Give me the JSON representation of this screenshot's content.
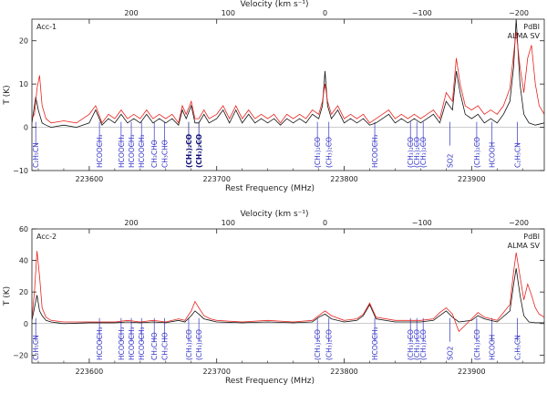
{
  "colors": {
    "pdbi": "#111111",
    "alma": "#e8241f",
    "line_id": "#3434c8",
    "line_id_bold": "#101078"
  },
  "chart_data": [
    {
      "type": "line",
      "panel_label": "Acc-1",
      "top_axis_label": "Velocity (km s⁻¹)",
      "xlabel": "Rest Frequency (MHz)",
      "ylabel": "T (K)",
      "xlim": [
        223555,
        223957
      ],
      "ylim": [
        -10,
        25
      ],
      "velocity_ticks": [
        200,
        100,
        0,
        -100,
        -200
      ],
      "velocity_tick_freqs": [
        223633,
        223709,
        223785,
        223861,
        223937
      ],
      "x_ticks": [
        223600,
        223700,
        223800,
        223900
      ],
      "y_ticks": [
        -10,
        0,
        10,
        20
      ],
      "legend": [
        "PdBI",
        "ALMA SV"
      ],
      "series": [
        {
          "name": "PdBI",
          "color": "#111111",
          "x": [
            223555,
            223558,
            223560,
            223563,
            223566,
            223570,
            223580,
            223590,
            223600,
            223605,
            223610,
            223615,
            223620,
            223625,
            223630,
            223635,
            223640,
            223645,
            223650,
            223655,
            223660,
            223665,
            223670,
            223673,
            223676,
            223680,
            223683,
            223686,
            223690,
            223694,
            223700,
            223705,
            223710,
            223715,
            223720,
            223725,
            223730,
            223735,
            223740,
            223745,
            223750,
            223755,
            223760,
            223765,
            223770,
            223775,
            223780,
            223783,
            223785,
            223787,
            223790,
            223795,
            223800,
            223805,
            223810,
            223815,
            223820,
            223825,
            223830,
            223835,
            223840,
            223845,
            223850,
            223855,
            223860,
            223865,
            223870,
            223875,
            223880,
            223885,
            223888,
            223891,
            223895,
            223900,
            223905,
            223910,
            223915,
            223920,
            223925,
            223930,
            223933,
            223935,
            223938,
            223941,
            223945,
            223950,
            223957
          ],
          "y": [
            1,
            7,
            4,
            1,
            0.5,
            0,
            0.5,
            0,
            1,
            4,
            0.5,
            2,
            1,
            3,
            1,
            2,
            1,
            3,
            1,
            2,
            1,
            2,
            0.5,
            4,
            2,
            5,
            1,
            1,
            3,
            1,
            2,
            4,
            1,
            4,
            1,
            3,
            1,
            2,
            1,
            2,
            0.5,
            2,
            1,
            2,
            1,
            3,
            2,
            5,
            13,
            5,
            2,
            4,
            1,
            2,
            1,
            2,
            0.5,
            1,
            2,
            3,
            1,
            2,
            1,
            2,
            1,
            2,
            3,
            1,
            6,
            4,
            13,
            8,
            3,
            2,
            3,
            1,
            2,
            1,
            3,
            6,
            14,
            25,
            10,
            3,
            1,
            0.5,
            1
          ]
        },
        {
          "name": "ALMA SV",
          "color": "#e8241f",
          "x": [
            223555,
            223557,
            223559,
            223561,
            223563,
            223566,
            223570,
            223580,
            223590,
            223600,
            223605,
            223610,
            223615,
            223620,
            223625,
            223630,
            223635,
            223640,
            223645,
            223650,
            223655,
            223660,
            223665,
            223670,
            223673,
            223676,
            223680,
            223683,
            223686,
            223690,
            223694,
            223700,
            223705,
            223710,
            223715,
            223720,
            223725,
            223730,
            223735,
            223740,
            223745,
            223750,
            223755,
            223760,
            223765,
            223770,
            223775,
            223780,
            223783,
            223785,
            223787,
            223790,
            223795,
            223800,
            223805,
            223810,
            223815,
            223820,
            223825,
            223830,
            223835,
            223840,
            223845,
            223850,
            223855,
            223860,
            223865,
            223870,
            223875,
            223880,
            223885,
            223888,
            223891,
            223895,
            223900,
            223905,
            223910,
            223915,
            223920,
            223925,
            223930,
            223933,
            223935,
            223938,
            223941,
            223944,
            223947,
            223950,
            223953,
            223957
          ],
          "y": [
            2,
            3,
            9,
            12,
            5,
            2,
            1,
            1.5,
            1,
            3,
            5,
            1,
            3,
            2,
            4,
            2,
            3,
            2,
            4,
            2,
            3,
            2,
            3,
            1,
            5,
            3,
            6,
            2,
            2,
            4,
            2,
            3,
            5,
            2,
            5,
            2,
            4,
            2,
            3,
            2,
            3,
            1,
            3,
            2,
            3,
            2,
            4,
            3,
            6,
            10,
            6,
            3,
            5,
            2,
            3,
            2,
            3,
            1,
            2,
            3,
            4,
            2,
            3,
            2,
            3,
            2,
            3,
            4,
            2,
            8,
            6,
            16,
            10,
            5,
            4,
            5,
            3,
            4,
            3,
            5,
            9,
            17,
            22,
            14,
            8,
            16,
            19,
            10,
            5,
            3
          ]
        }
      ],
      "line_ids": [
        {
          "label": "C₂H₅CN",
          "freq": 223558,
          "bold": false
        },
        {
          "label": "HCOOCH₃",
          "freq": 223608,
          "bold": false
        },
        {
          "label": "HCOOCH₃",
          "freq": 223625,
          "bold": false
        },
        {
          "label": "HCOOCH₃",
          "freq": 223633,
          "bold": false
        },
        {
          "label": "HCOOCH₃",
          "freq": 223641,
          "bold": false
        },
        {
          "label": "CH₃CHO",
          "freq": 223651,
          "bold": false
        },
        {
          "label": "CH₃CHO",
          "freq": 223659,
          "bold": false
        },
        {
          "label": "(CH₃)₂CO",
          "freq": 223678,
          "bold": true
        },
        {
          "label": "(CH₃)₂CO",
          "freq": 223686,
          "bold": true
        },
        {
          "label": "(CH₃)₂CO",
          "freq": 223779,
          "bold": false
        },
        {
          "label": "(CH₃)₂CO",
          "freq": 223788,
          "bold": false
        },
        {
          "label": "HCOOCH₃",
          "freq": 223824,
          "bold": false
        },
        {
          "label": "(CH₃)₂CO",
          "freq": 223852,
          "bold": false
        },
        {
          "label": "(CH₃)₂CO",
          "freq": 223857,
          "bold": false
        },
        {
          "label": "(CH₃)₂CO",
          "freq": 223862,
          "bold": false
        },
        {
          "label": "SO2",
          "freq": 223883,
          "bold": false
        },
        {
          "label": "(CH₃)₂CO",
          "freq": 223904,
          "bold": false
        },
        {
          "label": "HCOOH",
          "freq": 223916,
          "bold": false
        },
        {
          "label": "C₂H₅CN",
          "freq": 223936,
          "bold": false
        }
      ]
    },
    {
      "type": "line",
      "panel_label": "Acc-2",
      "top_axis_label": "Velocity (km s⁻¹)",
      "xlabel": "Rest Frequency (MHz)",
      "ylabel": "T (K)",
      "xlim": [
        223555,
        223957
      ],
      "ylim": [
        -25,
        60
      ],
      "velocity_ticks": [
        200,
        100,
        0,
        -100,
        -200
      ],
      "velocity_tick_freqs": [
        223633,
        223709,
        223785,
        223861,
        223937
      ],
      "x_ticks": [
        223600,
        223700,
        223800,
        223900
      ],
      "y_ticks": [
        -20,
        0,
        20,
        40,
        60
      ],
      "legend": [
        "PdBI",
        "ALMA SV"
      ],
      "series": [
        {
          "name": "PdBI",
          "color": "#111111",
          "x": [
            223555,
            223557,
            223559,
            223561,
            223563,
            223566,
            223570,
            223580,
            223600,
            223620,
            223630,
            223640,
            223650,
            223660,
            223670,
            223675,
            223680,
            223683,
            223686,
            223690,
            223695,
            223700,
            223720,
            223740,
            223760,
            223775,
            223780,
            223785,
            223790,
            223800,
            223810,
            223815,
            223820,
            223825,
            223840,
            223860,
            223870,
            223875,
            223880,
            223885,
            223890,
            223900,
            223905,
            223910,
            223920,
            223930,
            223933,
            223935,
            223938,
            223941,
            223945,
            223950,
            223957
          ],
          "y": [
            2,
            10,
            18,
            8,
            5,
            2,
            1,
            0,
            0.5,
            0.5,
            1,
            0.5,
            1,
            0.5,
            2,
            1,
            5,
            8,
            6,
            3,
            2,
            1,
            0.5,
            1,
            0.5,
            1,
            4,
            6,
            3,
            1,
            2,
            5,
            12,
            3,
            1,
            1,
            2,
            5,
            8,
            4,
            1,
            2,
            5,
            3,
            1,
            8,
            25,
            35,
            18,
            5,
            1,
            0.5,
            0.5
          ]
        },
        {
          "name": "ALMA SV",
          "color": "#e8241f",
          "x": [
            223555,
            223557,
            223559,
            223561,
            223563,
            223566,
            223570,
            223580,
            223600,
            223620,
            223630,
            223640,
            223650,
            223660,
            223670,
            223675,
            223680,
            223683,
            223686,
            223690,
            223695,
            223700,
            223720,
            223740,
            223760,
            223775,
            223780,
            223785,
            223790,
            223800,
            223810,
            223815,
            223820,
            223825,
            223840,
            223860,
            223870,
            223875,
            223880,
            223885,
            223890,
            223900,
            223905,
            223910,
            223920,
            223930,
            223933,
            223935,
            223938,
            223941,
            223944,
            223947,
            223950,
            223953,
            223957
          ],
          "y": [
            3,
            20,
            46,
            30,
            10,
            4,
            2,
            1,
            1,
            1,
            2,
            1,
            2,
            1,
            3,
            2,
            8,
            14,
            10,
            5,
            3,
            2,
            1,
            2,
            1,
            2,
            5,
            8,
            5,
            2,
            3,
            6,
            13,
            4,
            2,
            2,
            3,
            7,
            10,
            6,
            -5,
            3,
            7,
            4,
            2,
            12,
            33,
            45,
            30,
            15,
            25,
            18,
            10,
            6,
            4
          ]
        }
      ],
      "line_ids": [
        {
          "label": "C₂H₅CN",
          "freq": 223558,
          "bold": false
        },
        {
          "label": "HCOOCH₃",
          "freq": 223608,
          "bold": false
        },
        {
          "label": "HCOOCH₃",
          "freq": 223625,
          "bold": false
        },
        {
          "label": "HCOOCH₃",
          "freq": 223633,
          "bold": false
        },
        {
          "label": "HCOOCH₃",
          "freq": 223641,
          "bold": false
        },
        {
          "label": "CH₃CHO",
          "freq": 223651,
          "bold": false
        },
        {
          "label": "CH₃CHO",
          "freq": 223659,
          "bold": false
        },
        {
          "label": "(CH₃)₂CO",
          "freq": 223678,
          "bold": false
        },
        {
          "label": "(CH₃)₂CO",
          "freq": 223686,
          "bold": false
        },
        {
          "label": "(CH₃)₂CO",
          "freq": 223779,
          "bold": false
        },
        {
          "label": "(CH₃)₂CO",
          "freq": 223788,
          "bold": false
        },
        {
          "label": "HCOOCH₃",
          "freq": 223824,
          "bold": false
        },
        {
          "label": "(CH₃)₂CO",
          "freq": 223852,
          "bold": false
        },
        {
          "label": "(CH₃)₂CO",
          "freq": 223857,
          "bold": false
        },
        {
          "label": "(CH₃)₂CO",
          "freq": 223862,
          "bold": false
        },
        {
          "label": "SO2",
          "freq": 223883,
          "bold": false
        },
        {
          "label": "(CH₃)₂CO",
          "freq": 223904,
          "bold": false
        },
        {
          "label": "HCOOH",
          "freq": 223916,
          "bold": false
        },
        {
          "label": "C₂H₅CN",
          "freq": 223936,
          "bold": false
        }
      ]
    }
  ]
}
